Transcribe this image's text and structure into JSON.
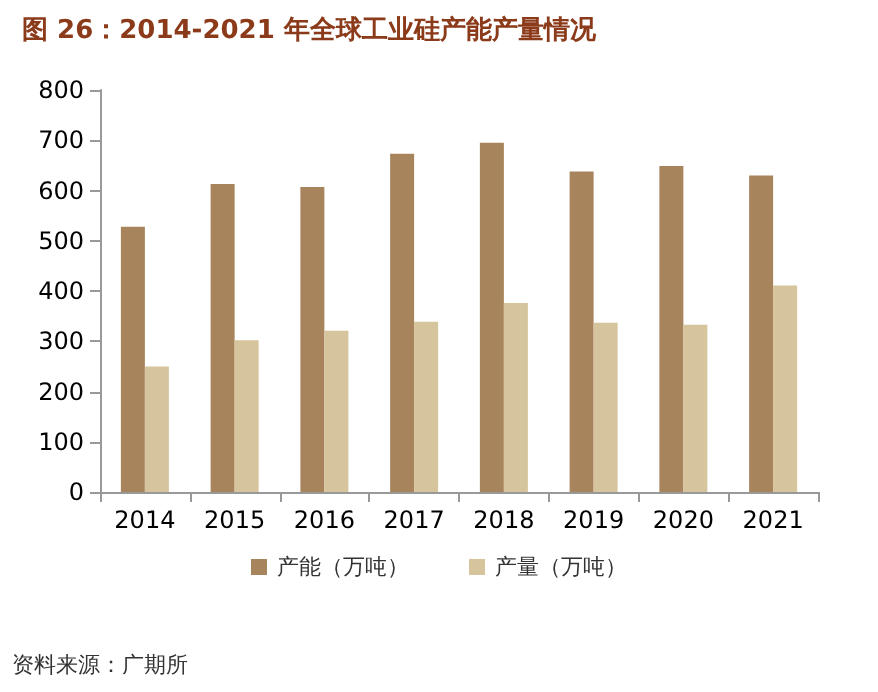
{
  "chart_data": {
    "type": "bar",
    "title": "图 26：2014-2021 年全球工业硅产能产量情况",
    "categories": [
      "2014",
      "2015",
      "2016",
      "2017",
      "2018",
      "2019",
      "2020",
      "2021"
    ],
    "series": [
      {
        "name": "产能（万吨）",
        "color": "#a8845c",
        "values": [
          528,
          613,
          607,
          673,
          695,
          638,
          649,
          630
        ]
      },
      {
        "name": "产量（万吨）",
        "color": "#d5c49c",
        "values": [
          250,
          302,
          321,
          339,
          376,
          337,
          333,
          411
        ]
      }
    ],
    "ylim": [
      0,
      800
    ],
    "yticks": [
      0,
      100,
      200,
      300,
      400,
      500,
      600,
      700,
      800
    ],
    "grid": false,
    "legend": "bottom",
    "annotations": [
      "资料来源：广期所"
    ]
  }
}
